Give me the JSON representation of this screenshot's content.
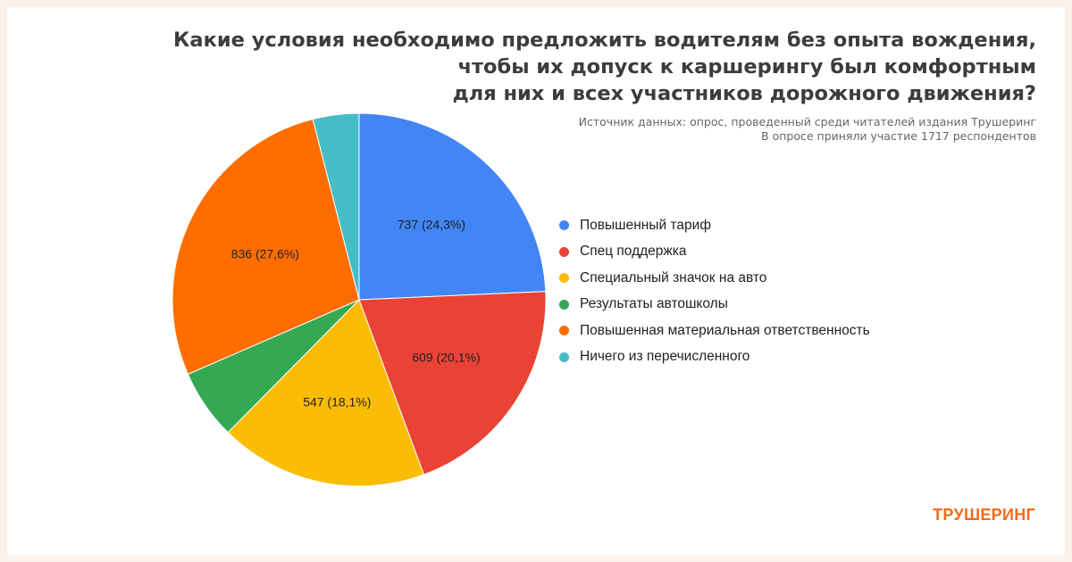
{
  "header": {
    "title_lines": [
      "Какие условия необходимо предложить водителям без опыта вождения,",
      "чтобы их допуск к каршерингу был комфортным",
      "для них и всех участников дорожного движения?"
    ],
    "source_lines": [
      "Источник данных: опрос, проведенный среди читателей издания Трушеринг",
      "В опросе приняли участие 1717 респондентов"
    ]
  },
  "brand": {
    "name": "ТРУШЕРИНГ",
    "color": "#f26a1b"
  },
  "chart_data": {
    "type": "pie",
    "start_angle_deg": 0,
    "direction": "clockwise",
    "legend_position": "right",
    "slices": [
      {
        "label": "Повышенный тариф",
        "value": 737,
        "percent": 24.3,
        "data_label": "737 (24,3%)",
        "color": "#4285f4"
      },
      {
        "label": "Спец поддержка",
        "value": 609,
        "percent": 20.1,
        "data_label": "609 (20,1%)",
        "color": "#ea4335"
      },
      {
        "label": "Специальный значок на авто",
        "value": 547,
        "percent": 18.1,
        "data_label": "547 (18,1%)",
        "color": "#fbbc04"
      },
      {
        "label": "Результаты автошколы",
        "value": 184,
        "percent": 6.1,
        "data_label": "",
        "color": "#34a853"
      },
      {
        "label": "Повышенная материальная ответственность",
        "value": 836,
        "percent": 27.6,
        "data_label": "836 (27,6%)",
        "color": "#ff6d01"
      },
      {
        "label": "Ничего из перечисленного",
        "value": 121,
        "percent": 4.0,
        "data_label": "",
        "color": "#46bdc6"
      }
    ]
  }
}
